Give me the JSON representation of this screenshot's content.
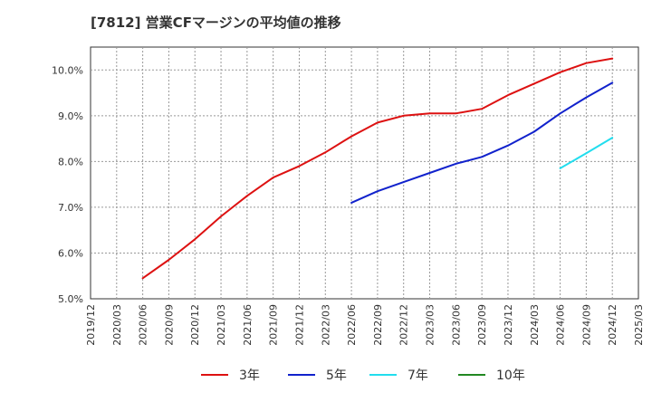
{
  "chart_data": {
    "type": "line",
    "title": "[7812]  営業CFマージンの平均値の推移",
    "xlabel": "",
    "ylabel": "",
    "x_ticks": [
      "2019/12",
      "2020/03",
      "2020/06",
      "2020/09",
      "2020/12",
      "2021/03",
      "2021/06",
      "2021/09",
      "2021/12",
      "2022/03",
      "2022/06",
      "2022/09",
      "2022/12",
      "2023/03",
      "2023/06",
      "2023/09",
      "2023/12",
      "2024/03",
      "2024/06",
      "2024/09",
      "2024/12",
      "2025/03"
    ],
    "y_ticks": [
      "5.0%",
      "6.0%",
      "7.0%",
      "8.0%",
      "9.0%",
      "10.0%"
    ],
    "ylim": [
      5.0,
      10.5
    ],
    "grid": true,
    "legend_position": "bottom",
    "series": [
      {
        "name": "3年",
        "color": "#dd1111",
        "x": [
          "2020/06",
          "2020/09",
          "2020/12",
          "2021/03",
          "2021/06",
          "2021/09",
          "2021/12",
          "2022/03",
          "2022/06",
          "2022/09",
          "2022/12",
          "2023/03",
          "2023/06",
          "2023/09",
          "2023/12",
          "2024/03",
          "2024/06",
          "2024/09",
          "2024/12"
        ],
        "values": [
          5.45,
          5.85,
          6.3,
          6.8,
          7.25,
          7.65,
          7.9,
          8.2,
          8.55,
          8.85,
          9.0,
          9.05,
          9.05,
          9.15,
          9.45,
          9.7,
          9.95,
          10.15,
          10.25
        ]
      },
      {
        "name": "5年",
        "color": "#1122cc",
        "x": [
          "2022/06",
          "2022/09",
          "2022/12",
          "2023/03",
          "2023/06",
          "2023/09",
          "2023/12",
          "2024/03",
          "2024/06",
          "2024/09",
          "2024/12"
        ],
        "values": [
          7.1,
          7.35,
          7.55,
          7.75,
          7.95,
          8.1,
          8.35,
          8.65,
          9.05,
          9.4,
          9.72
        ]
      },
      {
        "name": "7年",
        "color": "#22ddee",
        "x": [
          "2024/06",
          "2024/09",
          "2024/12"
        ],
        "values": [
          7.85,
          8.18,
          8.52
        ]
      },
      {
        "name": "10年",
        "color": "#228822",
        "x": [],
        "values": []
      }
    ]
  }
}
